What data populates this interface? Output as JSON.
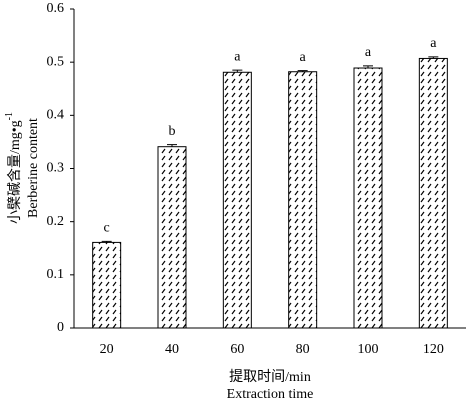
{
  "chart_data": {
    "type": "bar",
    "categories": [
      "20",
      "40",
      "60",
      "80",
      "100",
      "120"
    ],
    "values": [
      0.161,
      0.341,
      0.481,
      0.482,
      0.489,
      0.507
    ],
    "errors": [
      0.002,
      0.004,
      0.004,
      0.002,
      0.004,
      0.003
    ],
    "annotations": [
      "c",
      "b",
      "a",
      "a",
      "a",
      "a"
    ],
    "color": "#000000",
    "ylim": [
      0,
      0.6
    ],
    "yticks": [
      0,
      0.1,
      0.2,
      0.3,
      0.4,
      0.5,
      0.6
    ],
    "ylabel": {
      "text": "小檗碱含量/mg•g",
      "sup": "-1"
    },
    "ylabel2": "Berberine content",
    "xlabel": "提取时间/min",
    "xlabel2": "Extraction time"
  }
}
